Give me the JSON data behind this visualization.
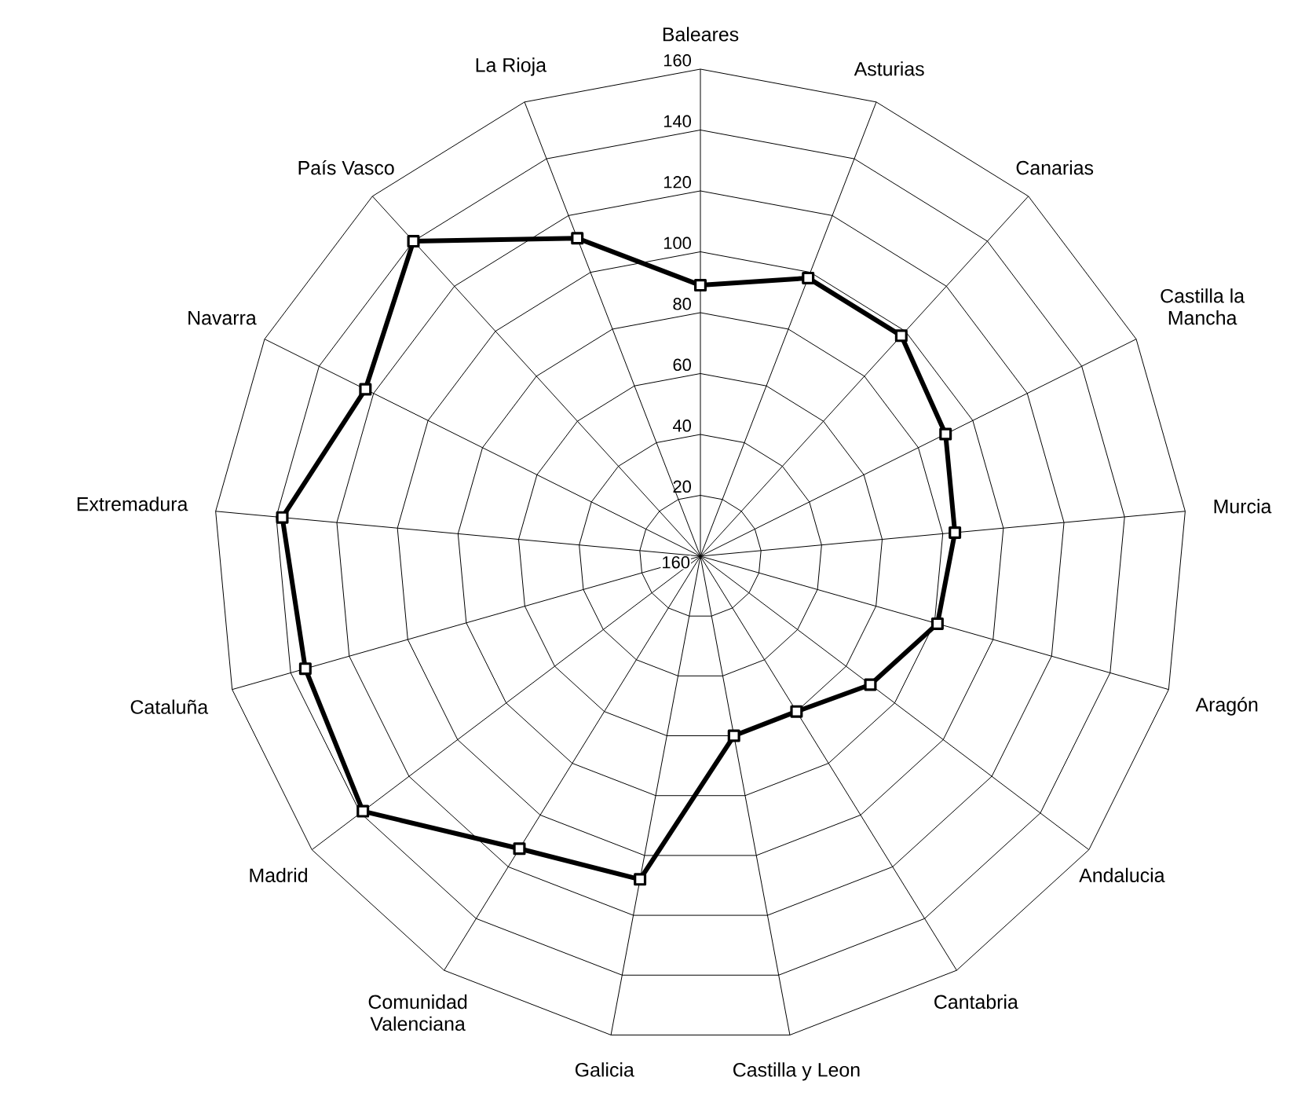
{
  "chart_data": {
    "type": "radar",
    "categories": [
      "Baleares",
      "Asturias",
      "Canarias",
      "Castilla la Mancha",
      "Murcia",
      "Aragón",
      "Andalucia",
      "Cantabria",
      "Castilla y Leon",
      "Galicia",
      "Comunidad Valenciana",
      "Madrid",
      "Cataluña",
      "Extremadura",
      "Navarra",
      "País Vasco",
      "La Rioja"
    ],
    "series": [
      {
        "color": "#000000",
        "values": [
          89,
          98,
          98,
          90,
          84,
          81,
          70,
          60,
          60,
          108,
          113,
          139,
          135,
          138,
          123,
          140,
          112
        ]
      }
    ],
    "ylim": [
      0,
      160
    ],
    "yticks": [
      20,
      40,
      60,
      80,
      100,
      120,
      140,
      160
    ],
    "annotations": [
      "160"
    ],
    "grid": true,
    "marker": "square",
    "line_style": "solid"
  }
}
